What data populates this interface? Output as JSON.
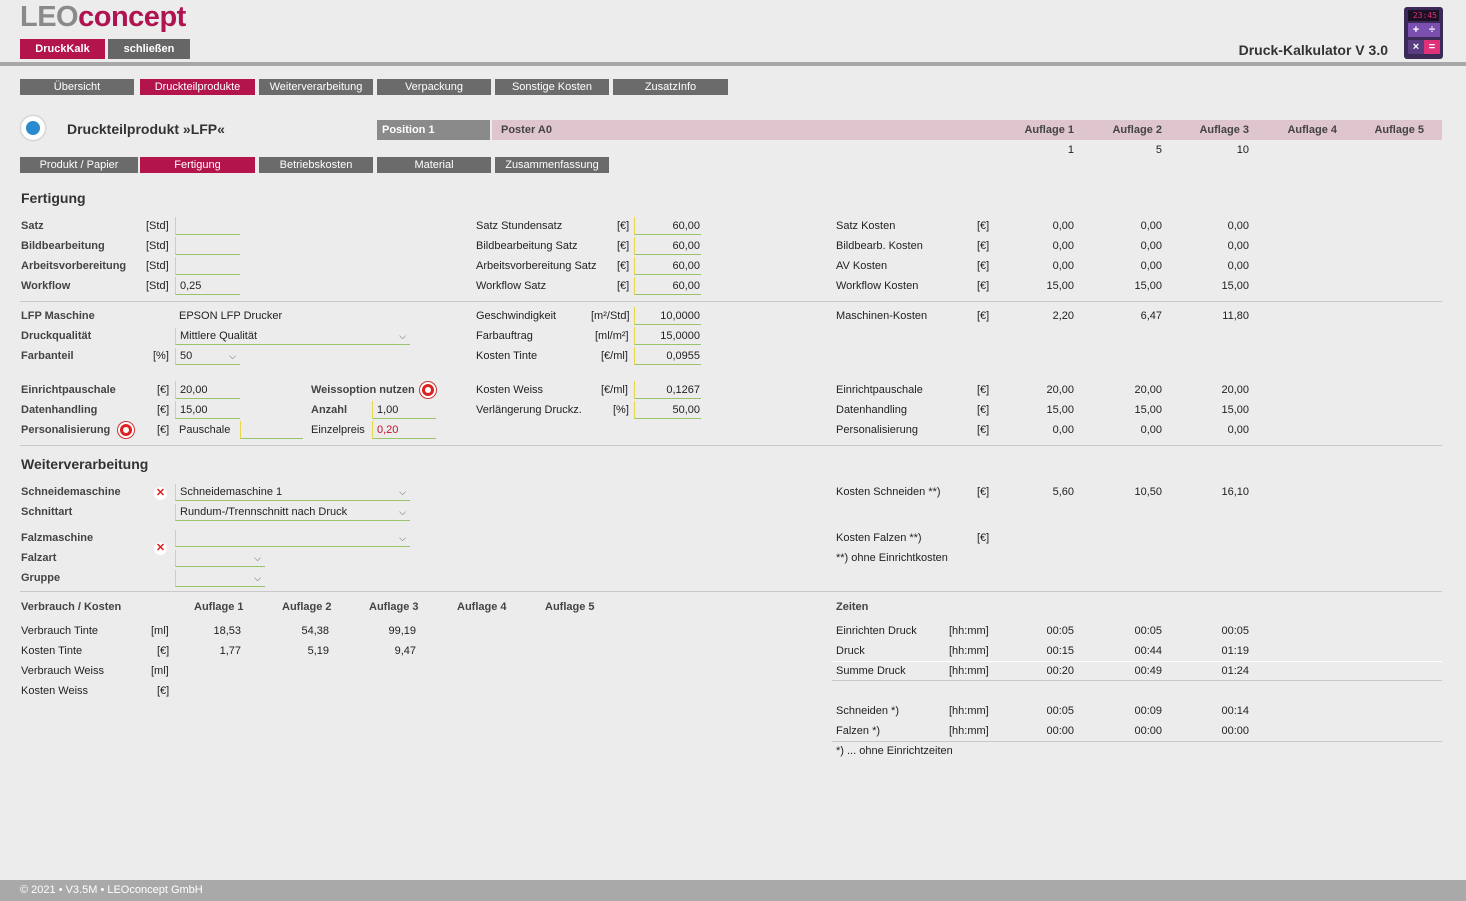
{
  "logo": {
    "part1": "LEO",
    "part2": "concept"
  },
  "top_buttons": {
    "druckkalk": "DruckKalk",
    "schliessen": "schließen"
  },
  "app_title": "Druck-Kalkulator V 3.0",
  "calc_display": "23:45",
  "main_tabs": [
    "Übersicht",
    "Druckteilprodukte",
    "Weiterverarbeitung",
    "Verpackung",
    "Sonstige Kosten",
    "ZusatzInfo"
  ],
  "product_title": "Druckteilprodukt »LFP«",
  "position": {
    "label": "Position 1",
    "name": "Poster A0"
  },
  "auflage_headers": [
    "Auflage 1",
    "Auflage 2",
    "Auflage 3",
    "Auflage 4",
    "Auflage 5"
  ],
  "auflage_values": [
    "1",
    "5",
    "10",
    "",
    ""
  ],
  "sub_tabs": [
    "Produkt / Papier",
    "Fertigung",
    "Betriebskosten",
    "Material",
    "Zusammenfassung"
  ],
  "fertigung": {
    "title": "Fertigung",
    "rows": [
      {
        "label": "Satz",
        "unit": "[Std]",
        "value": "",
        "rlabel": "Satz Stundensatz",
        "runit": "[€]",
        "rvalue": "60,00",
        "klabel": "Satz Kosten",
        "kunit": "[€]",
        "k": [
          "0,00",
          "0,00",
          "0,00"
        ]
      },
      {
        "label": "Bildbearbeitung",
        "unit": "[Std]",
        "value": "",
        "rlabel": "Bildbearbeitung Satz",
        "runit": "[€]",
        "rvalue": "60,00",
        "klabel": "Bildbearb. Kosten",
        "kunit": "[€]",
        "k": [
          "0,00",
          "0,00",
          "0,00"
        ]
      },
      {
        "label": "Arbeitsvorbereitung",
        "unit": "[Std]",
        "value": "",
        "rlabel": "Arbeitsvorbereitung Satz",
        "runit": "[€]",
        "rvalue": "60,00",
        "klabel": "AV Kosten",
        "kunit": "[€]",
        "k": [
          "0,00",
          "0,00",
          "0,00"
        ]
      },
      {
        "label": "Workflow",
        "unit": "[Std]",
        "value": "0,25",
        "rlabel": "Workflow Satz",
        "runit": "[€]",
        "rvalue": "60,00",
        "klabel": "Workflow Kosten",
        "kunit": "[€]",
        "k": [
          "15,00",
          "15,00",
          "15,00"
        ]
      }
    ],
    "lfp_maschine_label": "LFP Maschine",
    "lfp_maschine_value": "EPSON LFP Drucker",
    "druckqualitaet_label": "Druckqualität",
    "druckqualitaet_value": "Mittlere Qualität",
    "farbanteil_label": "Farbanteil",
    "farbanteil_unit": "[%]",
    "farbanteil_value": "50",
    "geschw_label": "Geschwindigkeit",
    "geschw_unit": "[m²/Std]",
    "geschw_value": "10,0000",
    "farbauftrag_label": "Farbauftrag",
    "farbauftrag_unit": "[ml/m²]",
    "farbauftrag_value": "15,0000",
    "kosten_tinte_label": "Kosten Tinte",
    "kosten_tinte_unit": "[€/ml]",
    "kosten_tinte_value": "0,0955",
    "maschinen_label": "Maschinen-Kosten",
    "maschinen_unit": "[€]",
    "maschinen": [
      "2,20",
      "6,47",
      "11,80"
    ],
    "einricht_label": "Einrichtpauschale",
    "einricht_unit": "[€]",
    "einricht_value": "20,00",
    "daten_label": "Datenhandling",
    "daten_unit": "[€]",
    "daten_value": "15,00",
    "personal_label": "Personalisierung",
    "personal_unit": "[€]",
    "personal_value": "Pauschale",
    "weiss_label": "Weissoption nutzen",
    "anzahl_label": "Anzahl",
    "anzahl_value": "1,00",
    "einzelpreis_label": "Einzelpreis",
    "einzelpreis_value": "0,20",
    "kw_label": "Kosten Weiss",
    "kw_unit": "[€/ml]",
    "kw_value": "0,1267",
    "vd_label": "Verlängerung Druckz.",
    "vd_unit": "[%]",
    "vd_value": "50,00",
    "r_einricht_label": "Einrichtpauschale",
    "r_einricht": [
      "20,00",
      "20,00",
      "20,00"
    ],
    "r_daten_label": "Datenhandling",
    "r_daten": [
      "15,00",
      "15,00",
      "15,00"
    ],
    "r_personal_label": "Personalisierung",
    "r_personal": [
      "0,00",
      "0,00",
      "0,00"
    ],
    "euro": "[€]"
  },
  "weiter": {
    "title": "Weiterverarbeitung",
    "schneide_label": "Schneidemaschine",
    "schneide_value": "Schneidemaschine 1",
    "schnittart_label": "Schnittart",
    "schnittart_value": "Rundum-/Trennschnitt nach Druck",
    "falz_label": "Falzmaschine",
    "falz_value": "",
    "falzart_label": "Falzart",
    "gruppe_label": "Gruppe",
    "ks_label": "Kosten Schneiden **)",
    "ks_unit": "[€]",
    "ks": [
      "5,60",
      "10,50",
      "16,10"
    ],
    "kf_label": "Kosten Falzen **)",
    "kf_unit": "[€]",
    "note": "**) ohne Einrichtkosten"
  },
  "verbrauch": {
    "title": "Verbrauch / Kosten",
    "headers": [
      "Auflage 1",
      "Auflage 2",
      "Auflage 3",
      "Auflage 4",
      "Auflage 5"
    ],
    "rows": [
      {
        "label": "Verbrauch Tinte",
        "unit": "[ml]",
        "v": [
          "18,53",
          "54,38",
          "99,19"
        ]
      },
      {
        "label": "Kosten Tinte",
        "unit": "[€]",
        "v": [
          "1,77",
          "5,19",
          "9,47"
        ]
      },
      {
        "label": "Verbrauch Weiss",
        "unit": "[ml]",
        "v": [
          "",
          "",
          ""
        ]
      },
      {
        "label": "Kosten Weiss",
        "unit": "[€]",
        "v": [
          "",
          "",
          ""
        ]
      }
    ]
  },
  "zeiten": {
    "title": "Zeiten",
    "rows": [
      {
        "label": "Einrichten Druck",
        "unit": "[hh:mm]",
        "v": [
          "00:05",
          "00:05",
          "00:05"
        ]
      },
      {
        "label": "Druck",
        "unit": "[hh:mm]",
        "v": [
          "00:15",
          "00:44",
          "01:19"
        ]
      },
      {
        "label": "Summe Druck",
        "unit": "[hh:mm]",
        "v": [
          "00:20",
          "00:49",
          "01:24"
        ]
      },
      {
        "label": "Schneiden *)",
        "unit": "[hh:mm]",
        "v": [
          "00:05",
          "00:09",
          "00:14"
        ]
      },
      {
        "label": "Falzen *)",
        "unit": "[hh:mm]",
        "v": [
          "00:00",
          "00:00",
          "00:00"
        ]
      }
    ],
    "note": "*) ... ohne Einrichtzeiten"
  },
  "footer": "© 2021 • V3.5M • LEOconcept GmbH",
  "colors": {
    "accent": "#b4144c",
    "tab_gray": "#6b6b6b",
    "background": "#ececec"
  }
}
